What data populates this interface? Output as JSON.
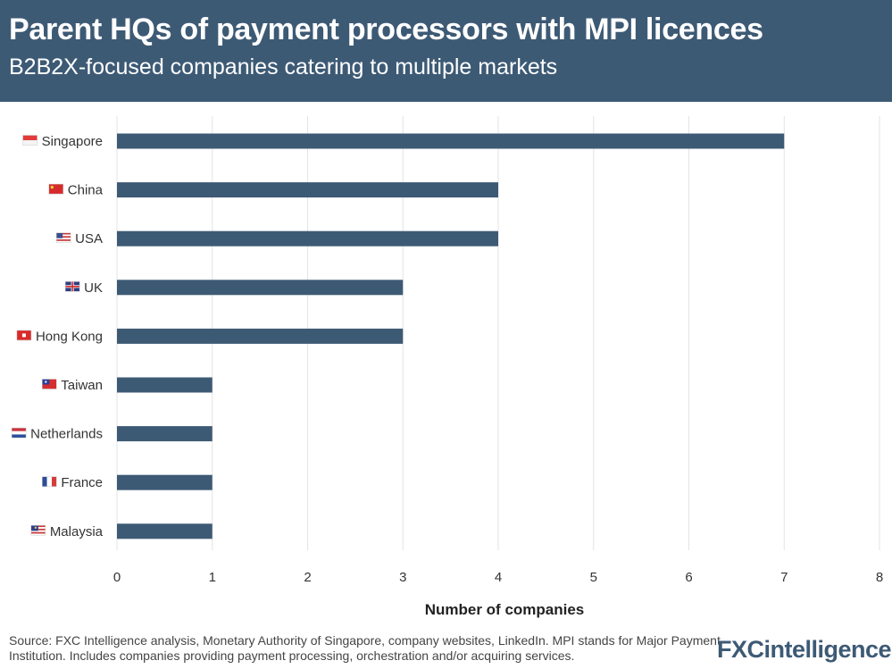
{
  "header": {
    "title": "Parent HQs of payment processors with MPI licences",
    "subtitle": "B2B2X-focused companies catering to multiple markets"
  },
  "chart_data": {
    "type": "bar",
    "orientation": "horizontal",
    "categories": [
      "Singapore",
      "China",
      "USA",
      "UK",
      "Hong Kong",
      "Taiwan",
      "Netherlands",
      "France",
      "Malaysia"
    ],
    "flags": [
      "flag-singapore-icon",
      "flag-china-icon",
      "flag-usa-icon",
      "flag-uk-icon",
      "flag-hong-kong-icon",
      "flag-taiwan-icon",
      "flag-netherlands-icon",
      "flag-france-icon",
      "flag-malaysia-icon"
    ],
    "values": [
      7,
      4,
      4,
      3,
      3,
      1,
      1,
      1,
      1
    ],
    "xlabel": "Number of companies",
    "xlim": [
      0,
      8
    ],
    "xticks": [
      "0",
      "1",
      "2",
      "3",
      "4",
      "5",
      "6",
      "7",
      "8"
    ],
    "grid": "vertical",
    "bar_color": "#3d5a75"
  },
  "footer": {
    "source": "Source: FXC Intelligence analysis, Monetary Authority of Singapore, company websites, LinkedIn. MPI stands for Major Payment Institution. Includes companies providing payment processing, orchestration and/or acquiring services.",
    "logo_fxc": "FXC",
    "logo_intelligence": "intelligence"
  }
}
